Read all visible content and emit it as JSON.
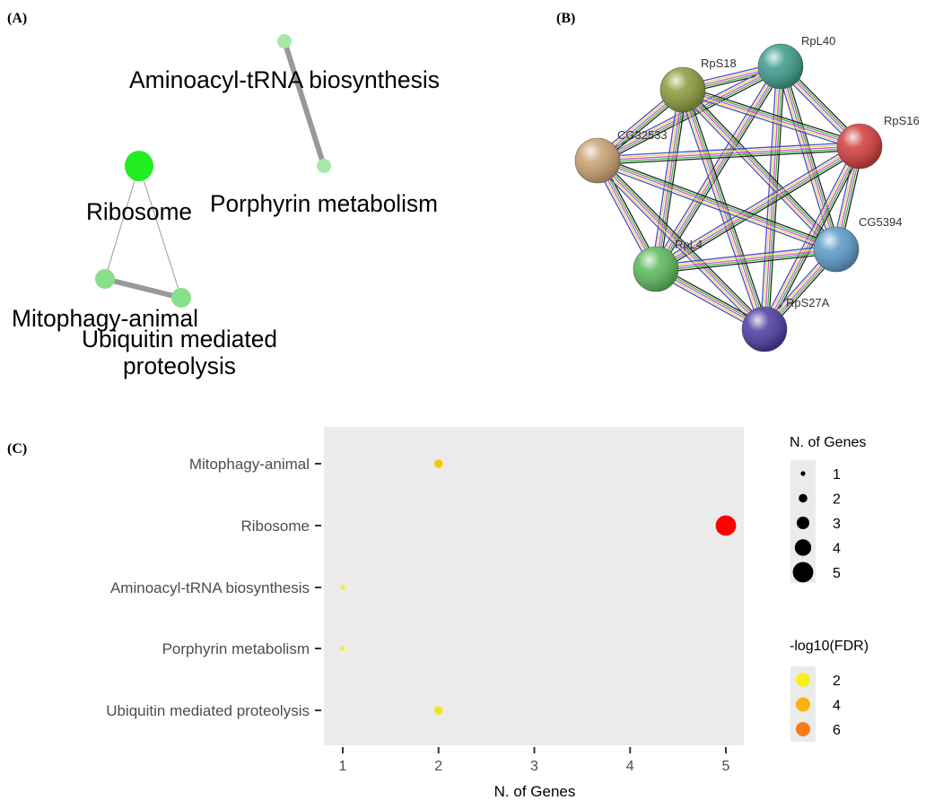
{
  "panels": {
    "a": "(A)",
    "b": "(B)",
    "c": "(C)"
  },
  "network": {
    "nodes": [
      {
        "id": "aminoacyl",
        "label": "Aminoacyl-tRNA biosynthesis",
        "color": "#a8e8a8"
      },
      {
        "id": "porphyrin",
        "label": "Porphyrin metabolism",
        "color": "#a8e8a8"
      },
      {
        "id": "ribosome",
        "label": "Ribosome",
        "color": "#22ee22"
      },
      {
        "id": "mitophagy",
        "label": "Mitophagy-animal",
        "color": "#88e088"
      },
      {
        "id": "ubiquitin",
        "label_lines": [
          "Ubiquitin mediated",
          "proteolysis"
        ],
        "color": "#88e088"
      }
    ],
    "edges": [
      {
        "from": "aminoacyl",
        "to": "porphyrin",
        "weight": "thick"
      },
      {
        "from": "ribosome",
        "to": "mitophagy",
        "weight": "thin"
      },
      {
        "from": "ribosome",
        "to": "ubiquitin",
        "weight": "thin"
      },
      {
        "from": "mitophagy",
        "to": "ubiquitin",
        "weight": "thick"
      }
    ]
  },
  "ppi": {
    "nodes": [
      {
        "id": "RpL40",
        "label": "RpL40",
        "color": "#3a9a8a"
      },
      {
        "id": "RpS18",
        "label": "RpS18",
        "color": "#8a9a3a"
      },
      {
        "id": "RpS16",
        "label": "RpS16",
        "color": "#d23a3a"
      },
      {
        "id": "CG32533",
        "label": "CG32533",
        "color": "#c8a070"
      },
      {
        "id": "CG5394",
        "label": "CG5394",
        "color": "#5a9ac8"
      },
      {
        "id": "RpL4",
        "label": "RpL4",
        "color": "#5ab85a"
      },
      {
        "id": "RpS27A",
        "label": "RpS27A",
        "color": "#4a3aa0"
      }
    ],
    "edge_colors": [
      "#222222",
      "#3ab54a",
      "#d84ad8",
      "#d8e04a",
      "#4a4ad8"
    ]
  },
  "chart_data": {
    "type": "scatter",
    "xlabel": "N. of Genes",
    "ylabel": "",
    "categories": [
      "Mitophagy-animal",
      "Ribosome",
      "Aminoacyl-tRNA biosynthesis",
      "Porphyrin metabolism",
      "Ubiquitin mediated proteolysis"
    ],
    "x_ticks": [
      1,
      2,
      3,
      4,
      5
    ],
    "xlim": [
      0.8,
      5.2
    ],
    "grid": false,
    "points": [
      {
        "category": "Mitophagy-animal",
        "x": 2,
        "size": 2,
        "neglog10_fdr": 3.0,
        "color": "#f5c800"
      },
      {
        "category": "Ribosome",
        "x": 5,
        "size": 5,
        "neglog10_fdr": 7.5,
        "color": "#ff0000"
      },
      {
        "category": "Aminoacyl-tRNA biosynthesis",
        "x": 1,
        "size": 1,
        "neglog10_fdr": 2.0,
        "color": "#f7ee20"
      },
      {
        "category": "Porphyrin metabolism",
        "x": 1,
        "size": 1,
        "neglog10_fdr": 2.0,
        "color": "#f7ee20"
      },
      {
        "category": "Ubiquitin mediated proteolysis",
        "x": 2,
        "size": 2,
        "neglog10_fdr": 2.2,
        "color": "#f3e41a"
      }
    ],
    "size_legend": {
      "title": "N. of Genes",
      "values": [
        "1",
        "2",
        "3",
        "4",
        "5"
      ]
    },
    "color_legend": {
      "title": "-log10(FDR)",
      "entries": [
        {
          "label": "2",
          "color": "#f7ee20"
        },
        {
          "label": "4",
          "color": "#fbb40e"
        },
        {
          "label": "6",
          "color": "#fa7a17"
        }
      ]
    },
    "panel_color": "#ebebeb",
    "legend_placement": "right"
  }
}
